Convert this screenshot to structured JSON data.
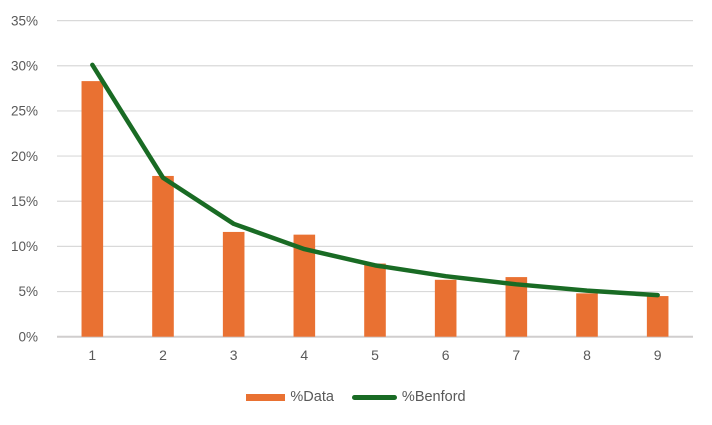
{
  "chart_data": {
    "type": "combo",
    "title": "",
    "xlabel": "",
    "ylabel": "",
    "categories": [
      "1",
      "2",
      "3",
      "4",
      "5",
      "6",
      "7",
      "8",
      "9"
    ],
    "series": [
      {
        "name": "%Data",
        "kind": "bar",
        "color": "#E97132",
        "values": [
          28.3,
          17.8,
          11.6,
          11.3,
          8.1,
          6.3,
          6.6,
          4.8,
          4.5
        ]
      },
      {
        "name": "%Benford",
        "kind": "line",
        "color": "#196B24",
        "values": [
          30.1,
          17.6,
          12.5,
          9.7,
          7.9,
          6.7,
          5.8,
          5.1,
          4.6
        ]
      }
    ],
    "ylim": [
      0,
      35
    ],
    "ytick_step": 5,
    "ytick_labels": [
      "0%",
      "5%",
      "10%",
      "15%",
      "20%",
      "25%",
      "30%",
      "35%"
    ],
    "grid": true,
    "legend_position": "bottom",
    "styles": {
      "grid_color": "#D9D9D9",
      "axis_color": "#D0CECE",
      "tick_text_color": "#595959",
      "background": "#FFFFFF"
    }
  }
}
